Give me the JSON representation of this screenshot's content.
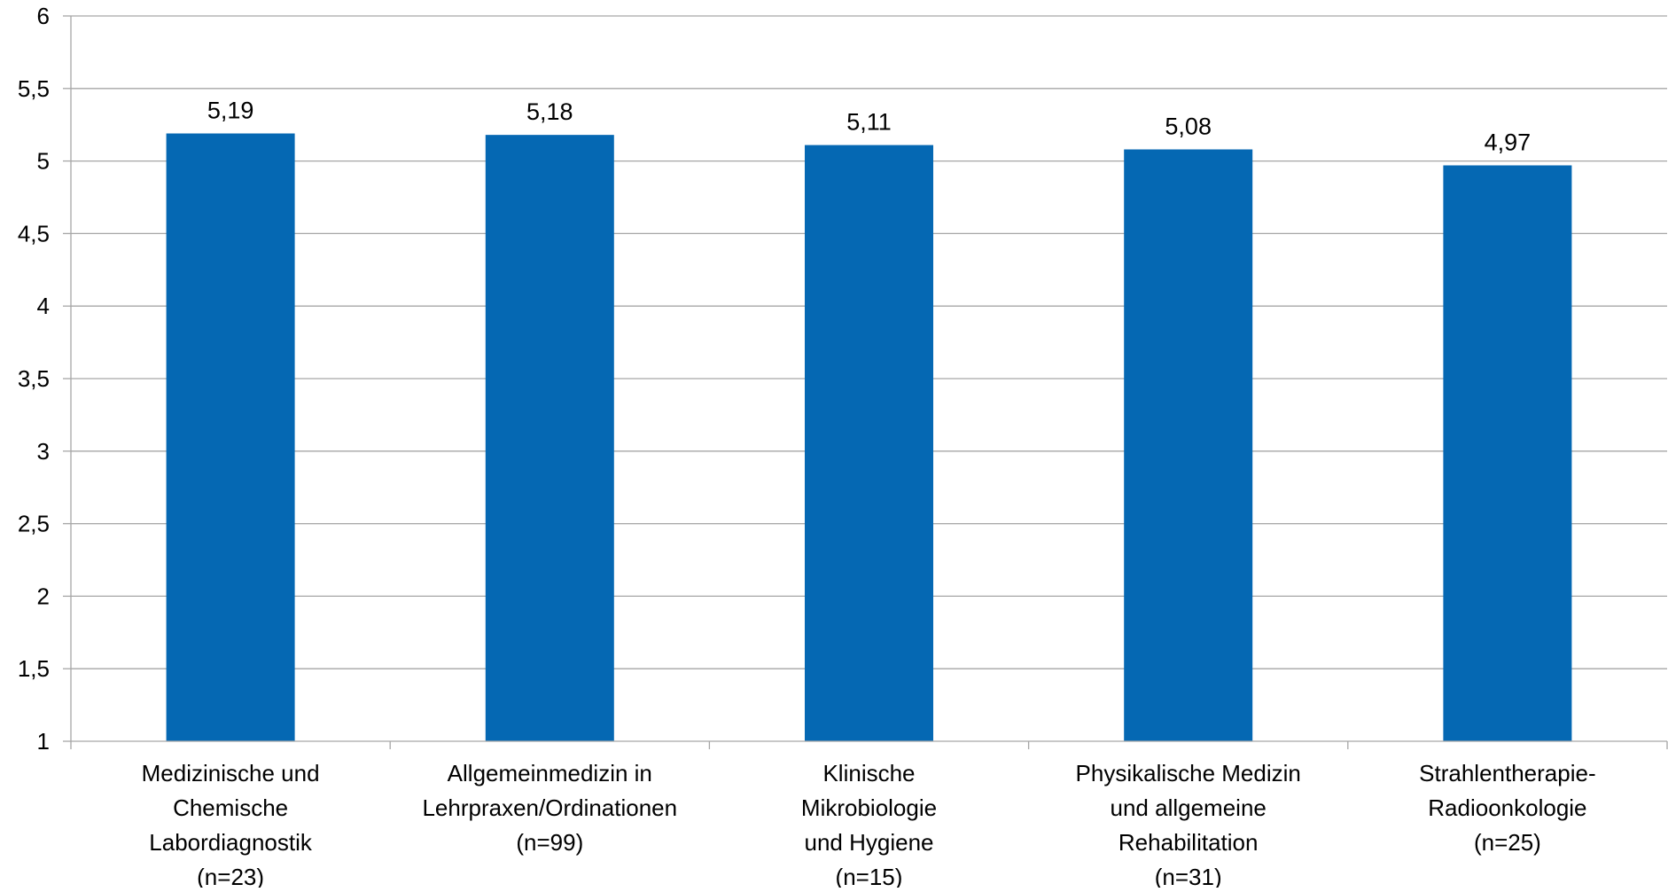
{
  "chart_data": {
    "type": "bar",
    "categories": [
      [
        "Medizinische und",
        "Chemische",
        "Labordiagnostik",
        "(n=23)"
      ],
      [
        "Allgemeinmedizin in",
        "Lehrpraxen/Ordinationen",
        "(n=99)"
      ],
      [
        "Klinische",
        "Mikrobiologie",
        "und Hygiene",
        "(n=15)"
      ],
      [
        "Physikalische Medizin",
        "und allgemeine",
        "Rehabilitation",
        "(n=31)"
      ],
      [
        "Strahlentherapie-",
        "Radioonkologie",
        "(n=25)"
      ]
    ],
    "values": [
      5.19,
      5.18,
      5.11,
      5.08,
      4.97
    ],
    "data_labels": [
      "5,19",
      "5,18",
      "5,11",
      "5,08",
      "4,97"
    ],
    "ylim": [
      1,
      6
    ],
    "yticks": [
      1,
      1.5,
      2,
      2.5,
      3,
      3.5,
      4,
      4.5,
      5,
      5.5,
      6
    ],
    "ytick_labels": [
      "1",
      "1,5",
      "2",
      "2,5",
      "3",
      "3,5",
      "4",
      "4,5",
      "5",
      "5,5",
      "6"
    ],
    "grid": true,
    "legend": "none",
    "colors": {
      "bar": "#0568B3",
      "grid": "#A6A6A6",
      "axis": "#A6A6A6"
    }
  }
}
